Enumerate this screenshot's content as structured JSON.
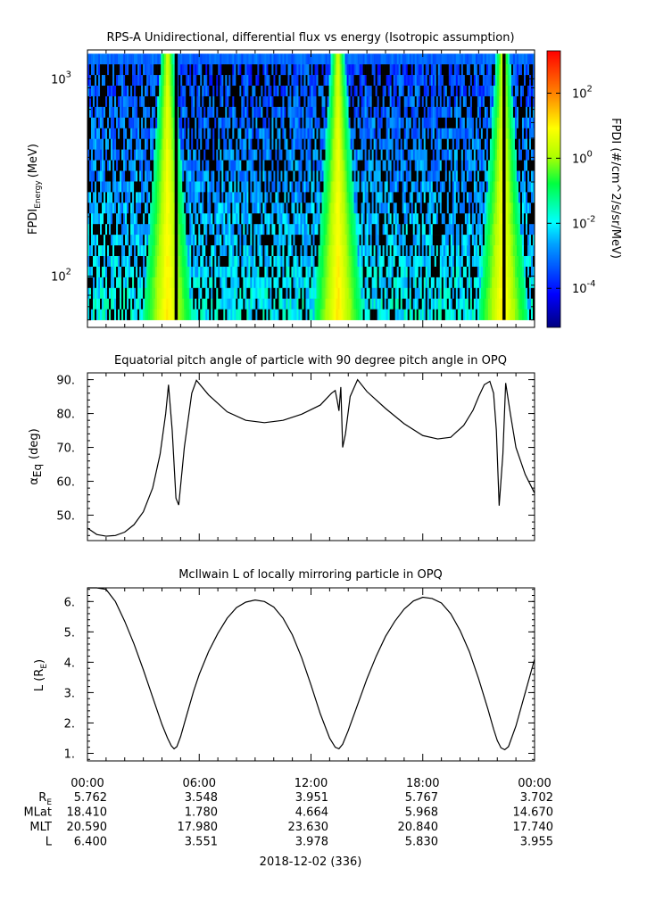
{
  "chart_data": [
    {
      "type": "heatmap",
      "title": "RPS-A Unidirectional, differential flux vs energy (Isotropic assumption)",
      "ylabel_main": "FPDI",
      "ylabel_sub": "Energy",
      "ylabel_unit": "(MeV)",
      "yscale": "log",
      "ylim": [
        55,
        1400
      ],
      "yticks": [
        {
          "value": 100,
          "base": "10",
          "exp": "2"
        },
        {
          "value": 1000,
          "base": "10",
          "exp": "3"
        }
      ],
      "energy_bins_approx": [
        60,
        65,
        71,
        77,
        84,
        92,
        100,
        110,
        121,
        134,
        148,
        165,
        185,
        210,
        240,
        275,
        320,
        375,
        440,
        520,
        620,
        740,
        880,
        1050,
        1250
      ],
      "high_flux_times_hours": [
        4.3,
        13.45,
        22.3
      ],
      "noise_bands": "black (below scale) speckle in most bins away from the radiation-belt crossings",
      "colorbar": {
        "label": "FPDI (#/cm^2/s/sr/MeV)",
        "scale": "log",
        "range_exp": [
          -5.2,
          3.3
        ],
        "ticks": [
          {
            "base": "10",
            "exp": "2",
            "value_exp": 2
          },
          {
            "base": "10",
            "exp": "0",
            "value_exp": 0
          },
          {
            "base": "10",
            "exp": "-2",
            "value_exp": -2
          },
          {
            "base": "10",
            "exp": "-4",
            "value_exp": -4
          }
        ]
      }
    },
    {
      "type": "line",
      "title": "Equatorial pitch angle of particle with 90 degree pitch angle in OPQ",
      "ylabel_main": "α",
      "ylabel_sub": "Eq",
      "ylabel_unit": "(deg)",
      "ylim": [
        42.5,
        92
      ],
      "yticks": [
        50,
        60,
        70,
        80,
        90
      ],
      "ytick_labels": [
        "50.",
        "60.",
        "70.",
        "80.",
        "90."
      ],
      "x_hours": [
        0,
        0.5,
        1,
        1.5,
        2,
        2.5,
        3,
        3.5,
        3.9,
        4.2,
        4.35,
        4.55,
        4.75,
        4.9,
        5.2,
        5.6,
        5.85,
        6.5,
        7.5,
        8.5,
        9.5,
        10.5,
        11.5,
        12.5,
        13.1,
        13.3,
        13.4,
        13.5,
        13.6,
        13.7,
        13.85,
        14.1,
        14.5,
        15.0,
        16.0,
        17.0,
        18.0,
        18.8,
        19.5,
        20.2,
        20.7,
        21.0,
        21.3,
        21.6,
        21.8,
        21.95,
        22.1,
        22.3,
        22.45,
        22.7,
        23.0,
        23.5,
        24.0
      ],
      "y_deg": [
        46.2,
        44.3,
        43.8,
        44.0,
        45.0,
        47.2,
        51.0,
        58.0,
        68.0,
        80.0,
        88.5,
        75.0,
        55.0,
        53.0,
        70.0,
        86.0,
        89.8,
        85.5,
        80.5,
        78.0,
        77.3,
        78.0,
        79.8,
        82.5,
        86.0,
        86.8,
        84.0,
        80.8,
        87.8,
        70.0,
        74.0,
        85.0,
        90.0,
        86.5,
        81.5,
        77.0,
        73.5,
        72.5,
        73.0,
        76.5,
        81.0,
        85.0,
        88.5,
        89.5,
        86.0,
        75.0,
        52.8,
        68.0,
        89.0,
        80.0,
        70.0,
        62.0,
        56.5
      ]
    },
    {
      "type": "line",
      "title": "McIlwain L of locally mirroring particle in OPQ",
      "ylabel_main": "L (R",
      "ylabel_sub": "E",
      "ylabel_unit": ")",
      "ylim": [
        0.75,
        6.45
      ],
      "yticks": [
        1,
        2,
        3,
        4,
        5,
        6
      ],
      "ytick_labels": [
        "1.",
        "2.",
        "3.",
        "4.",
        "5.",
        "6."
      ],
      "x_hours": [
        0,
        0.5,
        1.0,
        1.5,
        2.0,
        2.5,
        3.0,
        3.5,
        4.0,
        4.3,
        4.5,
        4.65,
        4.8,
        5.0,
        5.3,
        5.7,
        6.0,
        6.5,
        7.0,
        7.5,
        8.0,
        8.5,
        9.0,
        9.5,
        10.0,
        10.5,
        11.0,
        11.5,
        12.0,
        12.5,
        13.0,
        13.3,
        13.5,
        13.7,
        14.0,
        14.5,
        15.0,
        15.5,
        16.0,
        16.5,
        17.0,
        17.5,
        18.0,
        18.5,
        19.0,
        19.5,
        20.0,
        20.5,
        21.0,
        21.5,
        21.8,
        22.0,
        22.2,
        22.4,
        22.6,
        23.0,
        23.5,
        24.0
      ],
      "y_L": [
        6.45,
        6.45,
        6.4,
        6.0,
        5.35,
        4.6,
        3.75,
        2.85,
        1.95,
        1.5,
        1.25,
        1.15,
        1.22,
        1.55,
        2.2,
        3.05,
        3.6,
        4.35,
        4.95,
        5.45,
        5.8,
        5.98,
        6.05,
        6.0,
        5.82,
        5.45,
        4.9,
        4.15,
        3.25,
        2.3,
        1.5,
        1.2,
        1.15,
        1.3,
        1.75,
        2.6,
        3.45,
        4.2,
        4.85,
        5.35,
        5.75,
        6.02,
        6.14,
        6.1,
        5.95,
        5.6,
        5.05,
        4.35,
        3.45,
        2.45,
        1.8,
        1.42,
        1.18,
        1.12,
        1.22,
        1.9,
        3.0,
        4.1
      ]
    }
  ],
  "xaxis": {
    "tick_labels": [
      "00:00",
      "06:00",
      "12:00",
      "18:00",
      "00:00"
    ],
    "tick_hours": [
      0,
      6,
      12,
      18,
      24
    ],
    "minor_tick_step_hours": 1,
    "date_label": "2018-12-02 (336)"
  },
  "ephemeris": {
    "rows": [
      {
        "label_main": "R",
        "label_sub": "E",
        "values": [
          "5.762",
          "3.548",
          "3.951",
          "5.767",
          "3.702"
        ]
      },
      {
        "label_main": "MLat",
        "label_sub": "",
        "values": [
          "18.410",
          "1.780",
          "4.664",
          "5.968",
          "14.670"
        ]
      },
      {
        "label_main": "MLT",
        "label_sub": "",
        "values": [
          "20.590",
          "17.980",
          "23.630",
          "20.840",
          "17.740"
        ]
      },
      {
        "label_main": "L",
        "label_sub": "",
        "values": [
          "6.400",
          "3.551",
          "3.978",
          "5.830",
          "3.955"
        ]
      }
    ]
  }
}
